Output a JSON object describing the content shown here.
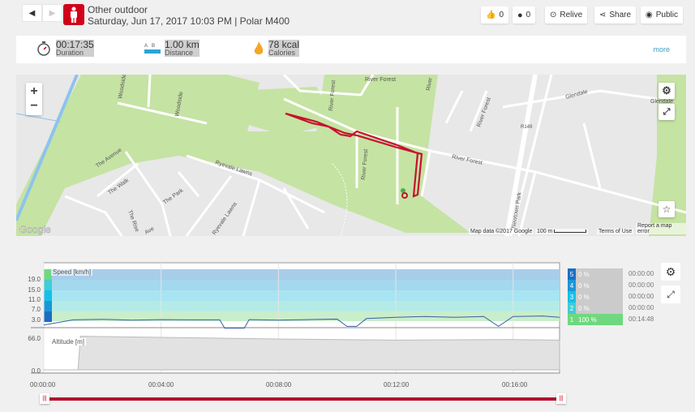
{
  "header": {
    "sport": "Other outdoor",
    "subtitle": "Saturday, Jun 17, 2017 10:03 PM | Polar M400",
    "sport_color": "#d0021b"
  },
  "toolbar": {
    "likes": "0",
    "comments": "0",
    "relive": "Relive",
    "share": "Share",
    "public": "Public"
  },
  "summary": {
    "duration": {
      "value": "00:17:35",
      "label": "Duration"
    },
    "distance": {
      "value": "1.00 km",
      "label": "Distance",
      "a": "A",
      "b": "B"
    },
    "calories": {
      "value": "78 kcal",
      "label": "Calories"
    },
    "more": "more"
  },
  "map": {
    "streets": [
      "Woodside",
      "Woodside",
      "River Forest",
      "River Forest",
      "River Forest",
      "River Forest",
      "River",
      "Glendale",
      "Glendale",
      "River Forest",
      "R149",
      "The Avenue",
      "The Walk",
      "The Park",
      "The Rise",
      "Ryevale Lawns",
      "Ryevale Lawns",
      "Newtown Park",
      "Ave"
    ],
    "google": "Google",
    "attribution": "Map data ©2017 Google",
    "scale": "100 m",
    "terms": "Terms of Use",
    "report": "Report a map error",
    "route_color": "#c8102e"
  },
  "chart_data": [
    {
      "type": "line",
      "title": "Speed [km/h]",
      "ylim": [
        0,
        22
      ],
      "yticks": [
        "19.0",
        "15.0",
        "11.0",
        "7.0",
        "3.0"
      ],
      "x": [
        "00:00:00",
        "00:01:00",
        "00:02:00",
        "00:03:00",
        "00:04:00",
        "00:05:00",
        "00:06:00",
        "00:06:10",
        "00:06:50",
        "00:07:00",
        "00:08:00",
        "00:09:00",
        "00:10:00",
        "00:10:20",
        "00:10:40",
        "00:11:00",
        "00:12:00",
        "00:13:00",
        "00:14:00",
        "00:15:00",
        "00:15:30",
        "00:16:00",
        "00:17:00",
        "00:17:35"
      ],
      "values": [
        1.5,
        3.5,
        3.7,
        3.4,
        3.6,
        3.5,
        3.5,
        0.3,
        0.3,
        3.6,
        3.4,
        3.6,
        3.8,
        1,
        1,
        4,
        4.5,
        4.8,
        4.5,
        4.8,
        1,
        4.8,
        5,
        4.5
      ],
      "color": "#3a5fa8"
    },
    {
      "type": "area",
      "title": "Altitude [m]",
      "ylim": [
        0,
        66
      ],
      "yticks": [
        "66.0",
        "0.0"
      ],
      "x": [
        "00:00:00",
        "00:01:10",
        "00:01:15",
        "00:04:00",
        "00:08:00",
        "00:12:00",
        "00:16:00",
        "00:17:35"
      ],
      "values": [
        0,
        0,
        62,
        60,
        57,
        55,
        56,
        55
      ]
    }
  ],
  "xaxis": [
    "00:00:00",
    "00:04:00",
    "00:08:00",
    "00:12:00",
    "00:16:00"
  ],
  "zones": [
    {
      "n": "5",
      "pct": "0 %",
      "time": "00:00:00",
      "color": "#1a6fc4"
    },
    {
      "n": "4",
      "pct": "0 %",
      "time": "00:00:00",
      "color": "#1b96d8"
    },
    {
      "n": "3",
      "pct": "0 %",
      "time": "00:00:00",
      "color": "#14c0e8"
    },
    {
      "n": "2",
      "pct": "0 %",
      "time": "00:00:00",
      "color": "#3fcdd6"
    },
    {
      "n": "1",
      "pct": "100 %",
      "time": "00:14:48",
      "color": "#6fd87f"
    }
  ]
}
